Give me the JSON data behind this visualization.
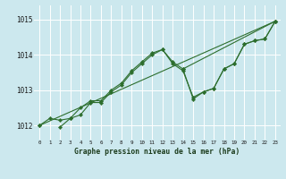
{
  "background_color": "#cce8ee",
  "grid_color": "#ffffff",
  "line_color": "#2d6e2d",
  "marker_color": "#2d6e2d",
  "xlabel": "Graphe pression niveau de la mer (hPa)",
  "ylabel_ticks": [
    1012,
    1013,
    1014,
    1015
  ],
  "xlim": [
    -0.5,
    23.5
  ],
  "ylim": [
    1011.6,
    1015.4
  ],
  "series": [
    {
      "x": [
        0,
        1,
        2,
        3,
        4,
        5,
        6,
        7,
        8,
        9,
        10,
        11,
        12,
        13,
        14,
        23
      ],
      "y": [
        1012.0,
        1012.2,
        1012.15,
        1012.2,
        1012.5,
        1012.7,
        1012.7,
        1013.0,
        1013.2,
        1013.55,
        1013.8,
        1014.05,
        1014.15,
        1013.8,
        1013.6,
        1014.95
      ]
    },
    {
      "x": [
        2,
        3,
        4,
        5,
        6,
        7,
        8,
        9,
        10,
        11,
        12,
        13,
        14,
        15,
        16,
        17,
        18,
        19,
        20,
        21,
        22,
        23
      ],
      "y": [
        1011.95,
        1012.2,
        1012.3,
        1012.65,
        1012.65,
        1012.95,
        1013.15,
        1013.5,
        1013.75,
        1014.0,
        1014.15,
        1013.75,
        1013.55,
        1012.8,
        1012.95,
        1013.05,
        1013.6,
        1013.75,
        1014.3,
        1014.4,
        1014.45,
        1014.95
      ]
    },
    {
      "x": [
        0,
        23
      ],
      "y": [
        1012.0,
        1014.95
      ]
    },
    {
      "x": [
        14,
        15,
        16,
        17,
        18,
        19,
        20,
        21,
        22,
        23
      ],
      "y": [
        1013.6,
        1012.75,
        1012.95,
        1013.05,
        1013.6,
        1013.75,
        1014.3,
        1014.4,
        1014.45,
        1014.95
      ]
    }
  ],
  "xtick_labels": [
    "0",
    "1",
    "2",
    "3",
    "4",
    "5",
    "6",
    "7",
    "8",
    "9",
    "10",
    "11",
    "12",
    "13",
    "14",
    "15",
    "16",
    "17",
    "18",
    "19",
    "20",
    "21",
    "22",
    "23"
  ]
}
